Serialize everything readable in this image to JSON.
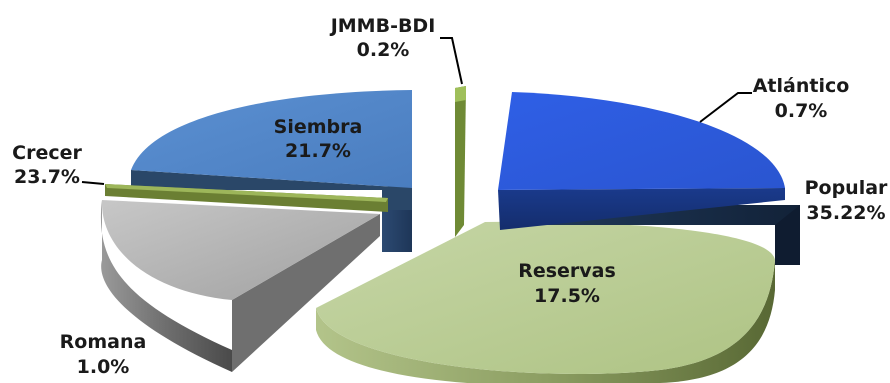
{
  "chart_data": {
    "type": "pie",
    "style": "3d-exploded",
    "slices": [
      {
        "name": "Atlántico",
        "label": "0.7%",
        "color": "#3366e8"
      },
      {
        "name": "Popular",
        "label": "35.22%",
        "color": "#1c3556"
      },
      {
        "name": "Reservas",
        "label": "17.5%",
        "color": "#b5c98f"
      },
      {
        "name": "Romana",
        "label": "1.0%",
        "color": "#a9a9a9"
      },
      {
        "name": "Crecer",
        "label": "23.7%",
        "color": "#7f9a3e"
      },
      {
        "name": "Siembra",
        "label": "21.7%",
        "color": "#4f86c6"
      },
      {
        "name": "JMMB-BDI",
        "label": "0.2%",
        "color": "#8fae4a"
      }
    ]
  }
}
